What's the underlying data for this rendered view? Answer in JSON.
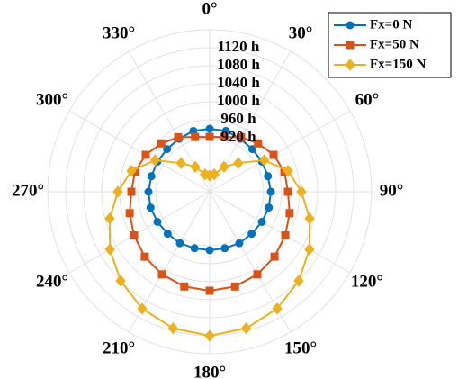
{
  "chart_data": {
    "type": "polar",
    "theta": [
      0,
      15,
      30,
      45,
      60,
      75,
      90,
      105,
      120,
      135,
      150,
      165,
      180,
      195,
      210,
      225,
      240,
      255,
      270,
      285,
      300,
      315,
      330,
      345
    ],
    "series": [
      {
        "name": "Fx=0 N",
        "color": "#0072bd",
        "marker": "circle",
        "values": [
          940,
          940,
          936,
          934,
          934,
          934,
          936,
          936,
          934,
          932,
          932,
          930,
          930,
          930,
          932,
          932,
          934,
          936,
          936,
          934,
          934,
          934,
          936,
          940
        ]
      },
      {
        "name": "Fx=50 N",
        "color": "#d95319",
        "marker": "square",
        "values": [
          922,
          926,
          940,
          952,
          964,
          972,
          974,
          984,
          994,
          1004,
          1012,
          1018,
          1020,
          1018,
          1012,
          1004,
          994,
          984,
          974,
          972,
          964,
          952,
          940,
          926
        ]
      },
      {
        "name": "Fx=150 N",
        "color": "#edb120",
        "marker": "diamond",
        "values": [
          836,
          840,
          864,
          890,
          940,
          980,
          1004,
          1030,
          1056,
          1080,
          1100,
          1114,
          1120,
          1114,
          1100,
          1080,
          1056,
          1030,
          1004,
          980,
          940,
          890,
          864,
          840
        ]
      }
    ],
    "rlim": [
      800,
      1160
    ],
    "rticks": [
      {
        "value": 920,
        "label": "920 h"
      },
      {
        "value": 960,
        "label": "960 h"
      },
      {
        "value": 1000,
        "label": "1000 h"
      },
      {
        "value": 1040,
        "label": "1040 h"
      },
      {
        "value": 1080,
        "label": "1080 h"
      },
      {
        "value": 1120,
        "label": "1120 h"
      }
    ],
    "thetaticks": [
      {
        "value": 0,
        "label": "0°"
      },
      {
        "value": 30,
        "label": "30°"
      },
      {
        "value": 60,
        "label": "60°"
      },
      {
        "value": 90,
        "label": "90°"
      },
      {
        "value": 120,
        "label": "120°"
      },
      {
        "value": 150,
        "label": "150°"
      },
      {
        "value": 180,
        "label": "180°"
      },
      {
        "value": 210,
        "label": "210°"
      },
      {
        "value": 240,
        "label": "240°"
      },
      {
        "value": 270,
        "label": "270°"
      },
      {
        "value": 300,
        "label": "300°"
      },
      {
        "value": 330,
        "label": "330°"
      }
    ],
    "grid": true,
    "legend": "top-right"
  }
}
